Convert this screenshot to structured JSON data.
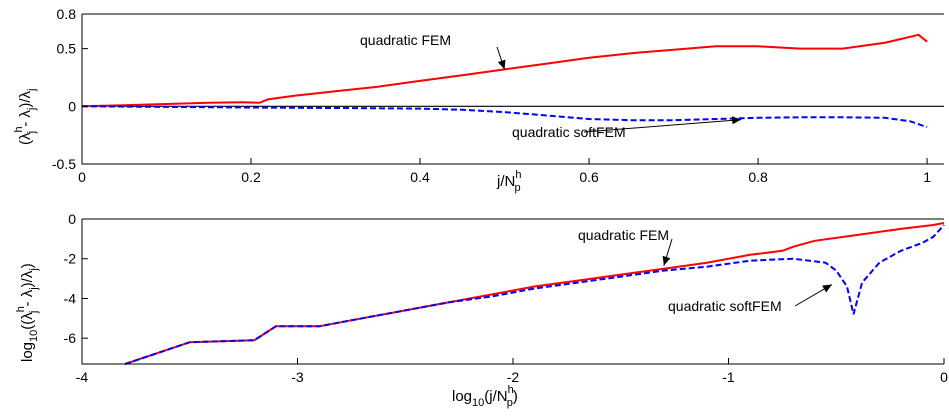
{
  "chart_data": [
    {
      "type": "line",
      "xlabel": "j/N",
      "xlabel_sup": "h",
      "xlabel_sub": "p",
      "ylabel": "(λ",
      "ylabel_tail": " - λ",
      "ylabel_end": ")/λ",
      "ylabel_sup": "h",
      "ylabel_sub": "j",
      "xlim": [
        0,
        1.02
      ],
      "ylim": [
        -0.5,
        0.8
      ],
      "xticks": [
        "0",
        "0.2",
        "0.4",
        "0.6",
        "0.8",
        "1"
      ],
      "yticks": [
        "0.8",
        "0.5",
        "0",
        "-0.5"
      ],
      "xtick_values": [
        0,
        0.2,
        0.4,
        0.6,
        0.8,
        1
      ],
      "ytick_values": [
        0.8,
        0.5,
        0,
        -0.5
      ],
      "reference_line_y": 0,
      "series": [
        {
          "name": "quadratic FEM",
          "color": "#ff0000",
          "style": "solid",
          "x": [
            0,
            0.05,
            0.1,
            0.15,
            0.19,
            0.21,
            0.22,
            0.25,
            0.3,
            0.35,
            0.4,
            0.45,
            0.5,
            0.55,
            0.6,
            0.65,
            0.7,
            0.75,
            0.8,
            0.85,
            0.9,
            0.95,
            0.99,
            1.0
          ],
          "y": [
            0,
            0.01,
            0.02,
            0.03,
            0.035,
            0.03,
            0.06,
            0.09,
            0.13,
            0.17,
            0.22,
            0.27,
            0.32,
            0.37,
            0.42,
            0.46,
            0.49,
            0.52,
            0.52,
            0.5,
            0.5,
            0.55,
            0.62,
            0.56
          ],
          "label_text": "quadratic FEM",
          "arrow_to": [
            0.5,
            0.32
          ]
        },
        {
          "name": "quadratic softFEM",
          "color": "#0000ff",
          "style": "dashed",
          "x": [
            0,
            0.1,
            0.2,
            0.3,
            0.4,
            0.45,
            0.5,
            0.55,
            0.6,
            0.65,
            0.7,
            0.75,
            0.8,
            0.85,
            0.9,
            0.95,
            0.98,
            1.0
          ],
          "y": [
            0,
            -0.005,
            -0.01,
            -0.015,
            -0.02,
            -0.03,
            -0.05,
            -0.08,
            -0.11,
            -0.12,
            -0.12,
            -0.11,
            -0.1,
            -0.095,
            -0.095,
            -0.1,
            -0.13,
            -0.18
          ],
          "label_text": "quadratic softFEM",
          "arrow_to": [
            0.78,
            -0.115
          ]
        }
      ]
    },
    {
      "type": "line",
      "xlabel": "log",
      "xlabel_sub1": "10",
      "xlabel_mid": "(j/N",
      "xlabel_sup": "h",
      "xlabel_sub2": "p",
      "xlabel_end": ")",
      "ylabel": "log",
      "ylabel_sub1": "10",
      "ylabel_a": "((λ",
      "ylabel_sup": "h",
      "ylabel_sub2": "j",
      "ylabel_b": " - λ",
      "ylabel_sub3": "j",
      "ylabel_c": ")/λ",
      "ylabel_sub4": "j",
      "ylabel_d": ")",
      "xlim": [
        -4,
        0
      ],
      "ylim": [
        -7.3,
        0
      ],
      "xticks": [
        "-4",
        "-3",
        "-2",
        "-1",
        "0"
      ],
      "yticks": [
        "0",
        "-2",
        "-4",
        "-6"
      ],
      "xtick_values": [
        -4,
        -3,
        -2,
        -1,
        0
      ],
      "ytick_values": [
        0,
        -2,
        -4,
        -6
      ],
      "series": [
        {
          "name": "quadratic FEM",
          "color": "#ff0000",
          "style": "solid",
          "x": [
            -3.8,
            -3.5,
            -3.2,
            -3.1,
            -2.9,
            -2.7,
            -2.5,
            -2.3,
            -2.1,
            -1.9,
            -1.7,
            -1.5,
            -1.3,
            -1.1,
            -0.9,
            -0.75,
            -0.7,
            -0.6,
            -0.4,
            -0.2,
            -0.05,
            0
          ],
          "y": [
            -7.3,
            -6.2,
            -6.1,
            -5.4,
            -5.4,
            -5.0,
            -4.6,
            -4.2,
            -3.8,
            -3.4,
            -3.1,
            -2.8,
            -2.5,
            -2.2,
            -1.8,
            -1.6,
            -1.4,
            -1.1,
            -0.8,
            -0.5,
            -0.3,
            -0.2
          ],
          "label_text": "quadratic FEM",
          "arrow_to": [
            -1.3,
            -2.35
          ]
        },
        {
          "name": "quadratic softFEM",
          "color": "#0000ff",
          "style": "dashed",
          "x": [
            -3.8,
            -3.5,
            -3.2,
            -3.1,
            -2.9,
            -2.7,
            -2.5,
            -2.3,
            -2.1,
            -1.9,
            -1.7,
            -1.5,
            -1.3,
            -1.1,
            -0.9,
            -0.7,
            -0.55,
            -0.5,
            -0.45,
            -0.42,
            -0.38,
            -0.3,
            -0.2,
            -0.1,
            -0.05,
            0
          ],
          "y": [
            -7.3,
            -6.2,
            -6.1,
            -5.4,
            -5.4,
            -5.0,
            -4.6,
            -4.2,
            -3.9,
            -3.5,
            -3.2,
            -2.9,
            -2.6,
            -2.4,
            -2.1,
            -2.0,
            -2.2,
            -2.6,
            -3.4,
            -4.8,
            -3.2,
            -2.2,
            -1.6,
            -1.2,
            -0.9,
            -0.3
          ],
          "label_text": "quadratic softFEM",
          "arrow_to": [
            -0.52,
            -3.3
          ]
        }
      ]
    }
  ]
}
